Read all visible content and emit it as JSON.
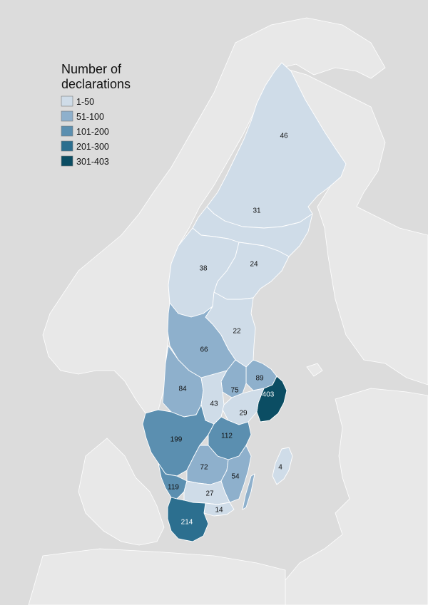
{
  "legend": {
    "title_line1": "Number of",
    "title_line2": "declarations",
    "classes": [
      {
        "label": "1-50",
        "color": "#cfdce8"
      },
      {
        "label": "51-100",
        "color": "#8eb0cc"
      },
      {
        "label": "101-200",
        "color": "#5b8fb0"
      },
      {
        "label": "201-300",
        "color": "#2c6f8f"
      },
      {
        "label": "301-403",
        "color": "#0b4d63"
      }
    ]
  },
  "colors": {
    "sea": "#dcdcdc",
    "land": "#e8e8e8",
    "border": "#ffffff"
  },
  "regions": [
    {
      "id": "norrbotten",
      "value": 46,
      "label": "46",
      "class": 0
    },
    {
      "id": "vasterbotten",
      "value": 31,
      "label": "31",
      "class": 0
    },
    {
      "id": "jamtland",
      "value": 38,
      "label": "38",
      "class": 0
    },
    {
      "id": "vasternorrland",
      "value": 24,
      "label": "24",
      "class": 0
    },
    {
      "id": "gavleborg",
      "value": 22,
      "label": "22",
      "class": 0
    },
    {
      "id": "dalarna",
      "value": 66,
      "label": "66",
      "class": 1
    },
    {
      "id": "uppsala",
      "value": 89,
      "label": "89",
      "class": 1
    },
    {
      "id": "stockholm",
      "value": 403,
      "label": "403",
      "class": 4
    },
    {
      "id": "varmland",
      "value": 84,
      "label": "84",
      "class": 1
    },
    {
      "id": "vastmanland",
      "value": 75,
      "label": "75",
      "class": 1
    },
    {
      "id": "orebro",
      "value": 43,
      "label": "43",
      "class": 0
    },
    {
      "id": "sodermanland",
      "value": 29,
      "label": "29",
      "class": 0
    },
    {
      "id": "vastra-gotaland",
      "value": 199,
      "label": "199",
      "class": 2
    },
    {
      "id": "ostergotland",
      "value": 112,
      "label": "112",
      "class": 2
    },
    {
      "id": "jonkoping",
      "value": 72,
      "label": "72",
      "class": 1
    },
    {
      "id": "kalmar",
      "value": 54,
      "label": "54",
      "class": 1
    },
    {
      "id": "gotland",
      "value": 4,
      "label": "4",
      "class": 0
    },
    {
      "id": "halland",
      "value": 119,
      "label": "119",
      "class": 2
    },
    {
      "id": "kronoberg",
      "value": 27,
      "label": "27",
      "class": 0
    },
    {
      "id": "blekinge",
      "value": 14,
      "label": "14",
      "class": 0
    },
    {
      "id": "skane",
      "value": 214,
      "label": "214",
      "class": 3
    }
  ]
}
